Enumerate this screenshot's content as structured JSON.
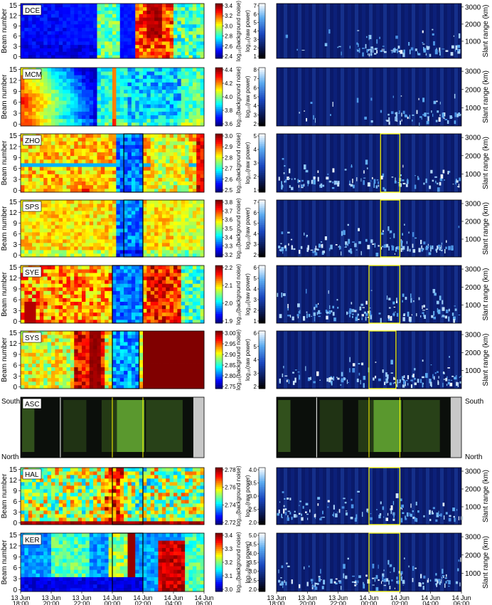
{
  "figure": {
    "left_ylabel": "Beam number",
    "right_ylabel": "Slant range (km)",
    "cbar_left_label": "log₁₀(background noise)",
    "cbar_right_label": "log₁₀(raw power)",
    "asc_label": "ASC",
    "asc_top": "South",
    "asc_bottom": "North",
    "x_ticks": [
      {
        "day": "13 Jun",
        "time": "18:00"
      },
      {
        "day": "13 Jun",
        "time": "20:00"
      },
      {
        "day": "13 Jun",
        "time": "22:00"
      },
      {
        "day": "14 Jun",
        "time": "00:00"
      },
      {
        "day": "14 Jun",
        "time": "02:00"
      },
      {
        "day": "14 Jun",
        "time": "04:00"
      },
      {
        "day": "14 Jun",
        "time": "06:00"
      }
    ],
    "colors": {
      "background": "#ffffff",
      "box_black": "#000000",
      "box_yellow": "#ffff00",
      "asc_line_white": "#ffffff",
      "asc_gray": "#c8c8c8"
    }
  },
  "chart_data": [
    {
      "type": "heatmap",
      "station": "DCE",
      "ylabel": "Beam number",
      "yticks": [
        0,
        3,
        6,
        9,
        12,
        15
      ],
      "x_time": [
        "13 Jun 18:00",
        "14 Jun 06:00"
      ],
      "cbar_ticks": [
        "2.4",
        "2.6",
        "2.8",
        "3.0",
        "3.2",
        "3.4"
      ],
      "box": null,
      "right_panel": {
        "type": "heatmap",
        "ylabel": "Slant range (km)",
        "yticks": [
          "1000",
          "2000",
          "3000"
        ],
        "cbar_ticks": [
          "1",
          "2",
          "3",
          "4",
          "5",
          "6",
          "7"
        ],
        "box": null
      }
    },
    {
      "type": "heatmap",
      "station": "MCM",
      "ylabel": "Beam number",
      "yticks": [
        0,
        3,
        6,
        9,
        12,
        15
      ],
      "x_time": [
        "13 Jun 18:00",
        "14 Jun 06:00"
      ],
      "cbar_ticks": [
        "3.6",
        "3.8",
        "4.0",
        "4.2",
        "4.4"
      ],
      "box": null,
      "right_panel": {
        "type": "heatmap",
        "ylabel": "Slant range (km)",
        "yticks": [
          "1000",
          "2000",
          "3000"
        ],
        "cbar_ticks": [
          "2",
          "3",
          "4",
          "5",
          "6",
          "7",
          "8"
        ],
        "box": null
      }
    },
    {
      "type": "heatmap",
      "station": "ZHO",
      "ylabel": "Beam number",
      "yticks": [
        0,
        3,
        6,
        9,
        12,
        15
      ],
      "x_time": [
        "13 Jun 18:00",
        "14 Jun 06:00"
      ],
      "cbar_ticks": [
        "2.5",
        "2.6",
        "2.7",
        "2.8",
        "2.9",
        "3.0"
      ],
      "box": [
        "14 Jun 00:45",
        "14 Jun 02:00"
      ],
      "right_panel": {
        "type": "heatmap",
        "ylabel": "Slant range (km)",
        "yticks": [
          "1000",
          "2000",
          "3000"
        ],
        "cbar_ticks": [
          "1",
          "2",
          "3",
          "4",
          "5"
        ],
        "box": [
          "14 Jun 00:45",
          "14 Jun 02:00"
        ]
      }
    },
    {
      "type": "heatmap",
      "station": "SPS",
      "ylabel": "Beam number",
      "yticks": [
        0,
        3,
        6,
        9,
        12,
        15
      ],
      "x_time": [
        "13 Jun 18:00",
        "14 Jun 06:00"
      ],
      "cbar_ticks": [
        "3.2",
        "3.3",
        "3.4",
        "3.5",
        "3.6",
        "3.7",
        "3.8"
      ],
      "box": [
        "14 Jun 00:45",
        "14 Jun 02:00"
      ],
      "right_panel": {
        "type": "heatmap",
        "ylabel": "Slant range (km)",
        "yticks": [
          "1000",
          "2000",
          "3000"
        ],
        "cbar_ticks": [
          "2",
          "3",
          "4",
          "5",
          "6",
          "7"
        ],
        "box": [
          "14 Jun 00:45",
          "14 Jun 02:00"
        ]
      }
    },
    {
      "type": "heatmap",
      "station": "SYE",
      "ylabel": "Beam number",
      "yticks": [
        0,
        3,
        6,
        9,
        12,
        15
      ],
      "x_time": [
        "13 Jun 18:00",
        "14 Jun 06:00"
      ],
      "cbar_ticks": [
        "1.9",
        "2.0",
        "2.1",
        "2.2"
      ],
      "box": [
        "14 Jun 00:00",
        "14 Jun 02:00"
      ],
      "right_panel": {
        "type": "heatmap",
        "ylabel": "Slant range (km)",
        "yticks": [
          "1000",
          "2000",
          "3000"
        ],
        "cbar_ticks": [
          "1",
          "2",
          "3",
          "4",
          "5",
          "6"
        ],
        "box": [
          "14 Jun 00:00",
          "14 Jun 02:00"
        ]
      }
    },
    {
      "type": "heatmap",
      "station": "SYS",
      "ylabel": "Beam number",
      "yticks": [
        0,
        3,
        6,
        9,
        12,
        15
      ],
      "x_time": [
        "13 Jun 18:00",
        "14 Jun 06:00"
      ],
      "cbar_ticks": [
        "2.75",
        "2.80",
        "2.85",
        "2.90",
        "2.95",
        "3.00"
      ],
      "box": [
        "14 Jun 00:00",
        "14 Jun 01:45"
      ],
      "right_panel": {
        "type": "heatmap",
        "ylabel": "Slant range (km)",
        "yticks": [
          "1000",
          "2000",
          "3000"
        ],
        "cbar_ticks": [
          "2",
          "3",
          "4",
          "5",
          "6"
        ],
        "box": [
          "14 Jun 00:00",
          "14 Jun 01:45"
        ]
      }
    },
    {
      "type": "heatmap",
      "station": "HAL",
      "ylabel": "Beam number",
      "yticks": [
        0,
        3,
        6,
        9,
        12,
        15
      ],
      "x_time": [
        "13 Jun 18:00",
        "14 Jun 06:00"
      ],
      "cbar_ticks": [
        "2.72",
        "2.74",
        "2.76",
        "2.78"
      ],
      "box": [
        "14 Jun 00:00",
        "14 Jun 02:00"
      ],
      "right_panel": {
        "type": "heatmap",
        "ylabel": "Slant range (km)",
        "yticks": [
          "1000",
          "2000",
          "3000"
        ],
        "cbar_ticks": [
          "2.0",
          "2.5",
          "3.0",
          "3.5",
          "4.0"
        ],
        "box": [
          "14 Jun 00:00",
          "14 Jun 02:00"
        ]
      }
    },
    {
      "type": "heatmap",
      "station": "KER",
      "ylabel": "Beam number",
      "yticks": [
        0,
        3,
        6,
        9,
        12,
        15
      ],
      "x_time": [
        "13 Jun 18:00",
        "14 Jun 06:00"
      ],
      "cbar_ticks": [
        "3.0",
        "3.1",
        "3.2",
        "3.3",
        "3.4"
      ],
      "box": [
        "14 Jun 00:00",
        "14 Jun 02:00"
      ],
      "right_panel": {
        "type": "heatmap",
        "ylabel": "Slant range (km)",
        "yticks": [
          "1000",
          "2000",
          "3000"
        ],
        "cbar_ticks": [
          "2.0",
          "2.5",
          "3.0",
          "3.5",
          "4.0",
          "4.5",
          "5.0"
        ],
        "box": [
          "14 Jun 00:00",
          "14 Jun 02:00"
        ]
      }
    }
  ]
}
